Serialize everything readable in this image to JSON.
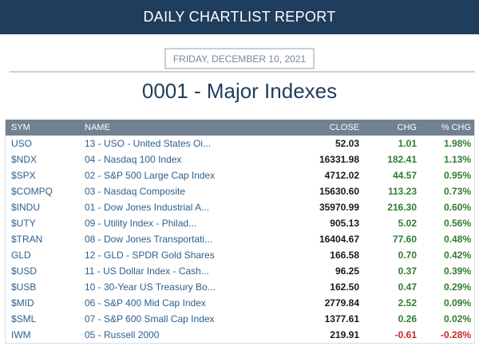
{
  "header": {
    "title": "DAILY CHARTLIST REPORT"
  },
  "report": {
    "date": "FRIDAY, DECEMBER 10, 2021",
    "title": "0001 - Major Indexes"
  },
  "table": {
    "columns": {
      "sym": "SYM",
      "name": "NAME",
      "close": "CLOSE",
      "chg": "CHG",
      "pct": "% CHG"
    },
    "rows": [
      {
        "sym": "USO",
        "name": "13 - USO - United States Oi...",
        "close": "52.03",
        "chg": "1.01",
        "pct": "1.98%",
        "dir": "pos"
      },
      {
        "sym": "$NDX",
        "name": "04 - Nasdaq 100 Index",
        "close": "16331.98",
        "chg": "182.41",
        "pct": "1.13%",
        "dir": "pos"
      },
      {
        "sym": "$SPX",
        "name": "02 - S&P 500 Large Cap Index",
        "close": "4712.02",
        "chg": "44.57",
        "pct": "0.95%",
        "dir": "pos"
      },
      {
        "sym": "$COMPQ",
        "name": "03 - Nasdaq Composite",
        "close": "15630.60",
        "chg": "113.23",
        "pct": "0.73%",
        "dir": "pos"
      },
      {
        "sym": "$INDU",
        "name": "01 - Dow Jones Industrial A...",
        "close": "35970.99",
        "chg": "216.30",
        "pct": "0.60%",
        "dir": "pos"
      },
      {
        "sym": "$UTY",
        "name": "09 - Utility Index - Philad...",
        "close": "905.13",
        "chg": "5.02",
        "pct": "0.56%",
        "dir": "pos"
      },
      {
        "sym": "$TRAN",
        "name": "08 - Dow Jones Transportati...",
        "close": "16404.67",
        "chg": "77.60",
        "pct": "0.48%",
        "dir": "pos"
      },
      {
        "sym": "GLD",
        "name": "12 - GLD - SPDR Gold Shares",
        "close": "166.58",
        "chg": "0.70",
        "pct": "0.42%",
        "dir": "pos"
      },
      {
        "sym": "$USD",
        "name": "11 - US Dollar Index - Cash...",
        "close": "96.25",
        "chg": "0.37",
        "pct": "0.39%",
        "dir": "pos"
      },
      {
        "sym": "$USB",
        "name": "10 - 30-Year US Treasury Bo...",
        "close": "162.50",
        "chg": "0.47",
        "pct": "0.29%",
        "dir": "pos"
      },
      {
        "sym": "$MID",
        "name": "06 - S&P 400 Mid Cap Index",
        "close": "2779.84",
        "chg": "2.52",
        "pct": "0.09%",
        "dir": "pos"
      },
      {
        "sym": "$SML",
        "name": "07 - S&P 600 Small Cap Index",
        "close": "1377.61",
        "chg": "0.26",
        "pct": "0.02%",
        "dir": "pos"
      },
      {
        "sym": "IWM",
        "name": "05 - Russell 2000",
        "close": "219.91",
        "chg": "-0.61",
        "pct": "-0.28%",
        "dir": "neg"
      }
    ]
  },
  "colors": {
    "banner": "#1f3d5c",
    "header_row": "#718191",
    "positive": "#2e7d32",
    "negative": "#c62828",
    "link": "#2d5f8e"
  }
}
